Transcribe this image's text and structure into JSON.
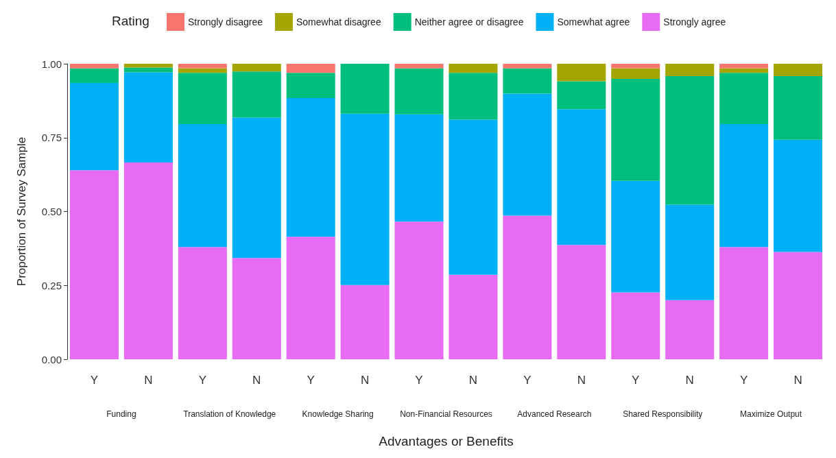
{
  "chart_data": {
    "type": "bar",
    "stacked": true,
    "xlabel": "Advantages or Benefits",
    "ylabel": "Proportion of Survey Sample",
    "legend_title": "Rating",
    "legend": "top",
    "grid": false,
    "categories": [
      "Y",
      "N",
      "Y",
      "N",
      "Y",
      "N",
      "Y",
      "N",
      "Y",
      "N",
      "Y",
      "N",
      "Y",
      "N"
    ],
    "annotations": [
      "Funding",
      "Translation of Knowledge",
      "Knowledge Sharing",
      "Non-Financial Resources",
      "Advanced Research",
      "Shared Responsibility",
      "Maximize Output"
    ],
    "ylim": [
      0,
      1
    ],
    "yticks": [
      {
        "value": 0,
        "label": "0.00"
      },
      {
        "value": 0.25,
        "label": "0.25"
      },
      {
        "value": 0.5,
        "label": "0.50"
      },
      {
        "value": 0.75,
        "label": "0.75"
      },
      {
        "value": 1,
        "label": "1.00"
      }
    ],
    "series": [
      {
        "name": "Strongly agree",
        "color": "#e76bf3",
        "values": [
          0.64,
          0.666,
          0.38,
          0.343,
          0.415,
          0.251,
          0.466,
          0.286,
          0.486,
          0.387,
          0.226,
          0.2,
          0.38,
          0.363
        ]
      },
      {
        "name": "Somewhat agree",
        "color": "#00b0f6",
        "values": [
          0.295,
          0.305,
          0.416,
          0.475,
          0.469,
          0.58,
          0.363,
          0.525,
          0.413,
          0.459,
          0.378,
          0.323,
          0.416,
          0.38
        ]
      },
      {
        "name": "Neither agree or disagree",
        "color": "#00bf7d",
        "values": [
          0.05,
          0.016,
          0.173,
          0.156,
          0.085,
          0.169,
          0.156,
          0.158,
          0.086,
          0.095,
          0.345,
          0.435,
          0.173,
          0.215
        ]
      },
      {
        "name": "Somewhat disagree",
        "color": "#a3a500",
        "values": [
          0,
          0.013,
          0.016,
          0.026,
          0,
          0,
          0,
          0.031,
          0,
          0.059,
          0.036,
          0.042,
          0.016,
          0.042
        ]
      },
      {
        "name": "Strongly disagree",
        "color": "#f8766d",
        "values": [
          0.015,
          0,
          0.015,
          0,
          0.031,
          0,
          0.015,
          0,
          0.015,
          0,
          0.015,
          0,
          0.015,
          0
        ]
      }
    ]
  }
}
